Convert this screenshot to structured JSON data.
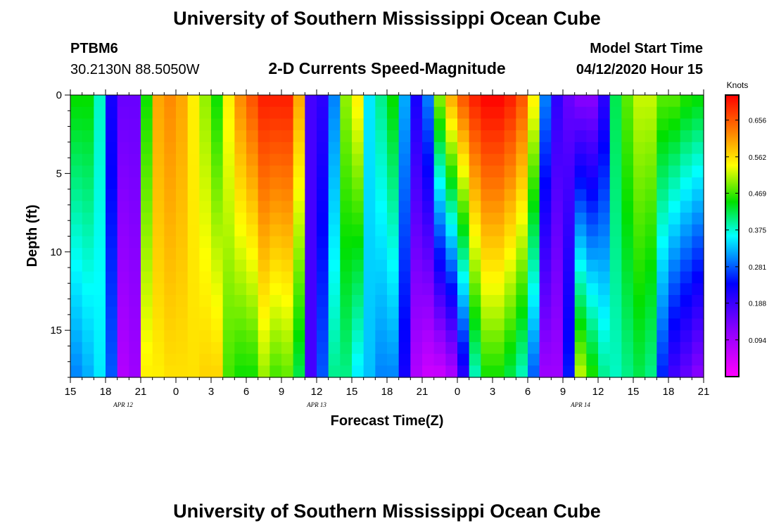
{
  "header": {
    "title": "University of Southern Mississippi Ocean Cube",
    "station": "PTBM6",
    "coords": "30.2130N 88.5050W",
    "subtitle": "2-D Currents Speed-Magnitude",
    "model_label": "Model Start Time",
    "model_time": "04/12/2020 Hour 15"
  },
  "footer": {
    "title": "University of Southern Mississippi Ocean Cube"
  },
  "chart_data": {
    "type": "heatmap",
    "title": "2-D Currents Speed-Magnitude",
    "xlabel": "Forecast Time(Z)",
    "ylabel": "Depth (ft)",
    "x_range_hours": [
      0,
      54
    ],
    "y_range_ft": [
      0,
      18
    ],
    "x_tick_labels": [
      "15",
      "18",
      "21",
      "0",
      "3",
      "6",
      "9",
      "12",
      "15",
      "18",
      "21",
      "0",
      "3",
      "6",
      "9",
      "12",
      "15",
      "18",
      "21"
    ],
    "y_tick_values": [
      0,
      5,
      10,
      15
    ],
    "y_tick_labels": [
      "0",
      "5",
      "10",
      "15"
    ],
    "date_labels": [
      {
        "text": "APR 12",
        "hour": 4.5
      },
      {
        "text": "APR 13",
        "hour": 21
      },
      {
        "text": "APR 14",
        "hour": 43.5
      }
    ],
    "colorbar": {
      "title": "Knots",
      "min": 0.0,
      "max": 0.72,
      "tick_values": [
        0.656,
        0.562,
        0.469,
        0.375,
        0.281,
        0.188,
        0.094
      ],
      "tick_labels": [
        "0.656",
        "0.562",
        "0.469",
        "0.375",
        "0.281",
        "0.188",
        "0.094"
      ]
    },
    "time_hours": [
      0,
      1,
      2,
      3,
      4,
      5,
      6,
      7,
      8,
      9,
      10,
      11,
      12,
      13,
      14,
      15,
      16,
      17,
      18,
      19,
      20,
      21,
      22,
      23,
      24,
      25,
      26,
      27,
      28,
      29,
      30,
      31,
      32,
      33,
      34,
      35,
      36,
      37,
      38,
      39,
      40,
      41,
      42,
      43,
      44,
      45,
      46,
      47,
      48,
      49,
      50,
      51,
      52,
      53,
      54
    ],
    "speed_surface_knots": [
      0.45,
      0.45,
      0.38,
      0.22,
      0.15,
      0.15,
      0.45,
      0.6,
      0.62,
      0.6,
      0.55,
      0.5,
      0.45,
      0.55,
      0.62,
      0.66,
      0.7,
      0.7,
      0.7,
      0.6,
      0.18,
      0.2,
      0.3,
      0.5,
      0.55,
      0.35,
      0.4,
      0.45,
      0.32,
      0.22,
      0.3,
      0.5,
      0.6,
      0.66,
      0.7,
      0.72,
      0.72,
      0.7,
      0.66,
      0.55,
      0.3,
      0.2,
      0.15,
      0.12,
      0.12,
      0.2,
      0.42,
      0.48,
      0.52,
      0.52,
      0.48,
      0.48,
      0.46,
      0.45,
      0.45
    ],
    "speed_bottom_knots": [
      0.3,
      0.32,
      0.35,
      0.28,
      0.08,
      0.1,
      0.55,
      0.55,
      0.56,
      0.56,
      0.56,
      0.57,
      0.57,
      0.47,
      0.45,
      0.45,
      0.5,
      0.47,
      0.48,
      0.42,
      0.18,
      0.28,
      0.4,
      0.4,
      0.35,
      0.33,
      0.3,
      0.3,
      0.22,
      0.08,
      0.05,
      0.05,
      0.08,
      0.2,
      0.38,
      0.45,
      0.45,
      0.42,
      0.38,
      0.28,
      0.1,
      0.1,
      0.25,
      0.52,
      0.46,
      0.4,
      0.38,
      0.4,
      0.42,
      0.4,
      0.25,
      0.18,
      0.15,
      0.12,
      0.1
    ]
  }
}
